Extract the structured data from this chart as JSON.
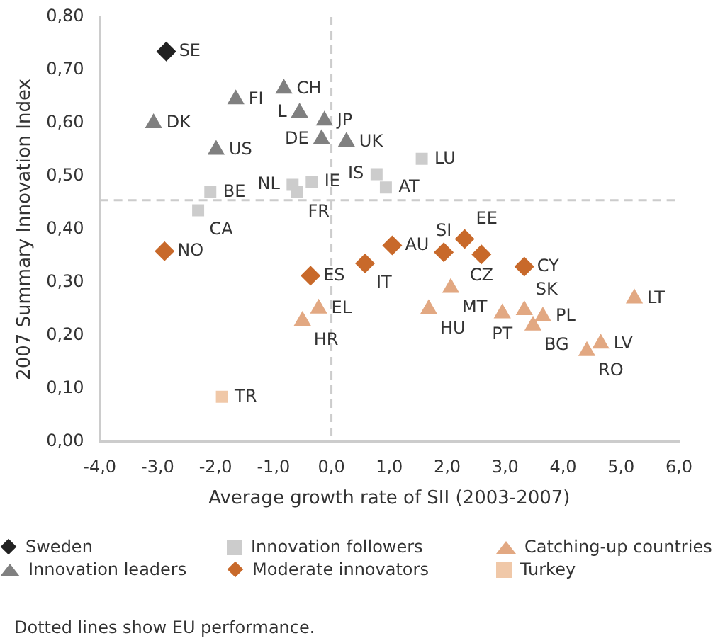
{
  "chart_data": {
    "type": "scatter",
    "xlabel": "Average growth rate of SII (2003-2007)",
    "ylabel": "2007 Summary Innovation Index",
    "xlim": [
      -4,
      6
    ],
    "xticks": [
      {
        "value": -4,
        "label": "-4,0"
      },
      {
        "value": -3,
        "label": "-3,0"
      },
      {
        "value": -2,
        "label": "-2,0"
      },
      {
        "value": -1,
        "label": "-1,0"
      },
      {
        "value": 0,
        "label": "0,0"
      },
      {
        "value": 1,
        "label": "1,0"
      },
      {
        "value": 2,
        "label": "2,0"
      },
      {
        "value": 3,
        "label": "3,0"
      },
      {
        "value": 4,
        "label": "4,0"
      },
      {
        "value": 5,
        "label": "5,0"
      },
      {
        "value": 6,
        "label": "6,0"
      }
    ],
    "ylim": [
      0,
      0.8
    ],
    "yticks": [
      {
        "value": 0,
        "label": "0,00"
      },
      {
        "value": 0.1,
        "label": "0,10"
      },
      {
        "value": 0.2,
        "label": "0,20"
      },
      {
        "value": 0.3,
        "label": "0,30"
      },
      {
        "value": 0.4,
        "label": "0,40"
      },
      {
        "value": 0.5,
        "label": "0,50"
      },
      {
        "value": 0.6,
        "label": "0,60"
      },
      {
        "value": 0.7,
        "label": "0,70"
      },
      {
        "value": 0.8,
        "label": "0,80"
      }
    ],
    "grid": false,
    "legend": "bottom",
    "series": [
      {
        "name": "Sweden",
        "color": "#222222",
        "marker": "diamond",
        "x": [
          -2.85
        ],
        "values": [
          0.735
        ]
      },
      {
        "name": "Innovation leaders",
        "color": "#808080",
        "marker": "triangle",
        "x": [
          -0.82,
          -1.65,
          -0.55,
          -3.07,
          -0.12,
          -0.17,
          0.26,
          -1.99
        ],
        "values": [
          0.665,
          0.645,
          0.62,
          0.6,
          0.605,
          0.57,
          0.565,
          0.55
        ]
      },
      {
        "name": "Innovation followers",
        "color": "#cccccc",
        "marker": "square",
        "x": [
          -0.67,
          -0.6,
          -0.34,
          -2.09,
          -2.3,
          0.78,
          0.94,
          1.56
        ],
        "values": [
          0.484,
          0.47,
          0.49,
          0.47,
          0.436,
          0.504,
          0.479,
          0.533
        ]
      },
      {
        "name": "Moderate innovators",
        "color": "#c8692a",
        "marker": "diamond",
        "x": [
          -2.88,
          -0.36,
          0.58,
          1.05,
          2.3,
          1.94,
          2.59,
          3.33
        ],
        "values": [
          0.359,
          0.313,
          0.336,
          0.37,
          0.382,
          0.357,
          0.353,
          0.33
        ]
      },
      {
        "name": "Catching-up countries",
        "color": "#e2a882",
        "marker": "triangle",
        "x": [
          2.06,
          1.68,
          3.33,
          2.95,
          3.65,
          3.48,
          4.65,
          4.41,
          5.23,
          -0.22,
          -0.5
        ],
        "values": [
          0.29,
          0.25,
          0.248,
          0.242,
          0.236,
          0.219,
          0.185,
          0.171,
          0.27,
          0.251,
          0.228
        ]
      },
      {
        "name": "Turkey",
        "color": "#f0c8a8",
        "marker": "square",
        "x": [
          -1.89
        ],
        "values": [
          0.085
        ]
      }
    ],
    "ref_lines": [
      {
        "axis": "x",
        "value": 0,
        "color": "#cccccc",
        "line_style": "dashed"
      },
      {
        "axis": "y",
        "value": 0.455,
        "color": "#cccccc",
        "line_style": "dashed"
      }
    ],
    "annotations": [
      {
        "text": "SE",
        "x": -2.85,
        "y": 0.735
      },
      {
        "text": "CH",
        "x": -0.82,
        "y": 0.665
      },
      {
        "text": "FI",
        "x": -1.65,
        "y": 0.645
      },
      {
        "text": "L",
        "x": -0.55,
        "y": 0.62
      },
      {
        "text": "DK",
        "x": -3.07,
        "y": 0.6
      },
      {
        "text": "JP",
        "x": -0.12,
        "y": 0.605
      },
      {
        "text": "DE",
        "x": -0.17,
        "y": 0.57
      },
      {
        "text": "UK",
        "x": 0.26,
        "y": 0.565
      },
      {
        "text": "US",
        "x": -1.99,
        "y": 0.55
      },
      {
        "text": "NL",
        "x": -0.67,
        "y": 0.484
      },
      {
        "text": "FR",
        "x": -0.6,
        "y": 0.47
      },
      {
        "text": "IE",
        "x": -0.34,
        "y": 0.49
      },
      {
        "text": "BE",
        "x": -2.09,
        "y": 0.47
      },
      {
        "text": "CA",
        "x": -2.3,
        "y": 0.436
      },
      {
        "text": "IS",
        "x": 0.78,
        "y": 0.504
      },
      {
        "text": "AT",
        "x": 0.94,
        "y": 0.479
      },
      {
        "text": "LU",
        "x": 1.56,
        "y": 0.533
      },
      {
        "text": "NO",
        "x": -2.88,
        "y": 0.359
      },
      {
        "text": "ES",
        "x": -0.36,
        "y": 0.313
      },
      {
        "text": "IT",
        "x": 0.58,
        "y": 0.336
      },
      {
        "text": "AU",
        "x": 1.05,
        "y": 0.37
      },
      {
        "text": "EE",
        "x": 2.3,
        "y": 0.382
      },
      {
        "text": "SI",
        "x": 1.94,
        "y": 0.357
      },
      {
        "text": "CZ",
        "x": 2.59,
        "y": 0.353
      },
      {
        "text": "CY",
        "x": 3.33,
        "y": 0.33
      },
      {
        "text": "MT",
        "x": 2.06,
        "y": 0.29
      },
      {
        "text": "HU",
        "x": 1.68,
        "y": 0.25
      },
      {
        "text": "SK",
        "x": 3.33,
        "y": 0.248
      },
      {
        "text": "PT",
        "x": 2.95,
        "y": 0.242
      },
      {
        "text": "PL",
        "x": 3.65,
        "y": 0.236
      },
      {
        "text": "BG",
        "x": 3.48,
        "y": 0.219
      },
      {
        "text": "LV",
        "x": 4.65,
        "y": 0.185
      },
      {
        "text": "RO",
        "x": 4.41,
        "y": 0.171
      },
      {
        "text": "LT",
        "x": 5.23,
        "y": 0.27
      },
      {
        "text": "EL",
        "x": -0.22,
        "y": 0.251
      },
      {
        "text": "HR",
        "x": -0.5,
        "y": 0.228
      },
      {
        "text": "TR",
        "x": -1.89,
        "y": 0.085
      },
      "Dotted lines show EU performance."
    ]
  }
}
